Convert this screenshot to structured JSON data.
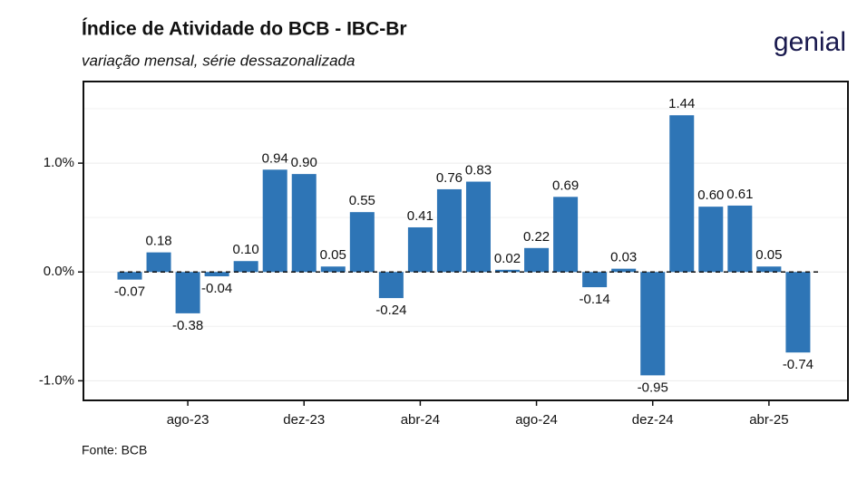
{
  "chart_data": {
    "type": "bar",
    "title": "Índice de Atividade do BCB - IBC-Br",
    "subtitle": "variação mensal, série dessazonalizada",
    "source": "Fonte: BCB",
    "logo": "genial",
    "categories": [
      null,
      null,
      "ago-23",
      null,
      null,
      null,
      "dez-23",
      null,
      null,
      null,
      "abr-24",
      null,
      null,
      null,
      "ago-24",
      null,
      null,
      null,
      "dez-24",
      null,
      null,
      null,
      "abr-25",
      null
    ],
    "values": [
      -0.07,
      0.18,
      -0.38,
      -0.04,
      0.1,
      0.94,
      0.9,
      0.05,
      0.55,
      -0.24,
      0.41,
      0.76,
      0.83,
      0.02,
      0.22,
      0.69,
      -0.14,
      0.03,
      -0.95,
      1.44,
      0.6,
      0.61,
      0.05,
      -0.74
    ],
    "value_labels": [
      "-0.07",
      "0.18",
      "-0.38",
      "-0.04",
      "0.10",
      "0.94",
      "0.90",
      "0.05",
      "0.55",
      "-0.24",
      "0.41",
      "0.76",
      "0.83",
      "0.02",
      "0.22",
      "0.69",
      "-0.14",
      "0.03",
      "-0.95",
      "1.44",
      "0.60",
      "0.61",
      "0.05",
      "-0.74"
    ],
    "color": "#2e75b6",
    "ylim": [
      -1.18,
      1.75
    ],
    "yticks": [
      {
        "value": -1,
        "label": "-1.0%"
      },
      {
        "value": 0,
        "label": "0.0%"
      },
      {
        "value": 1,
        "label": "1.0%"
      }
    ],
    "minor_yticks": [
      -0.5,
      0.5,
      1.5
    ],
    "grid": true
  }
}
